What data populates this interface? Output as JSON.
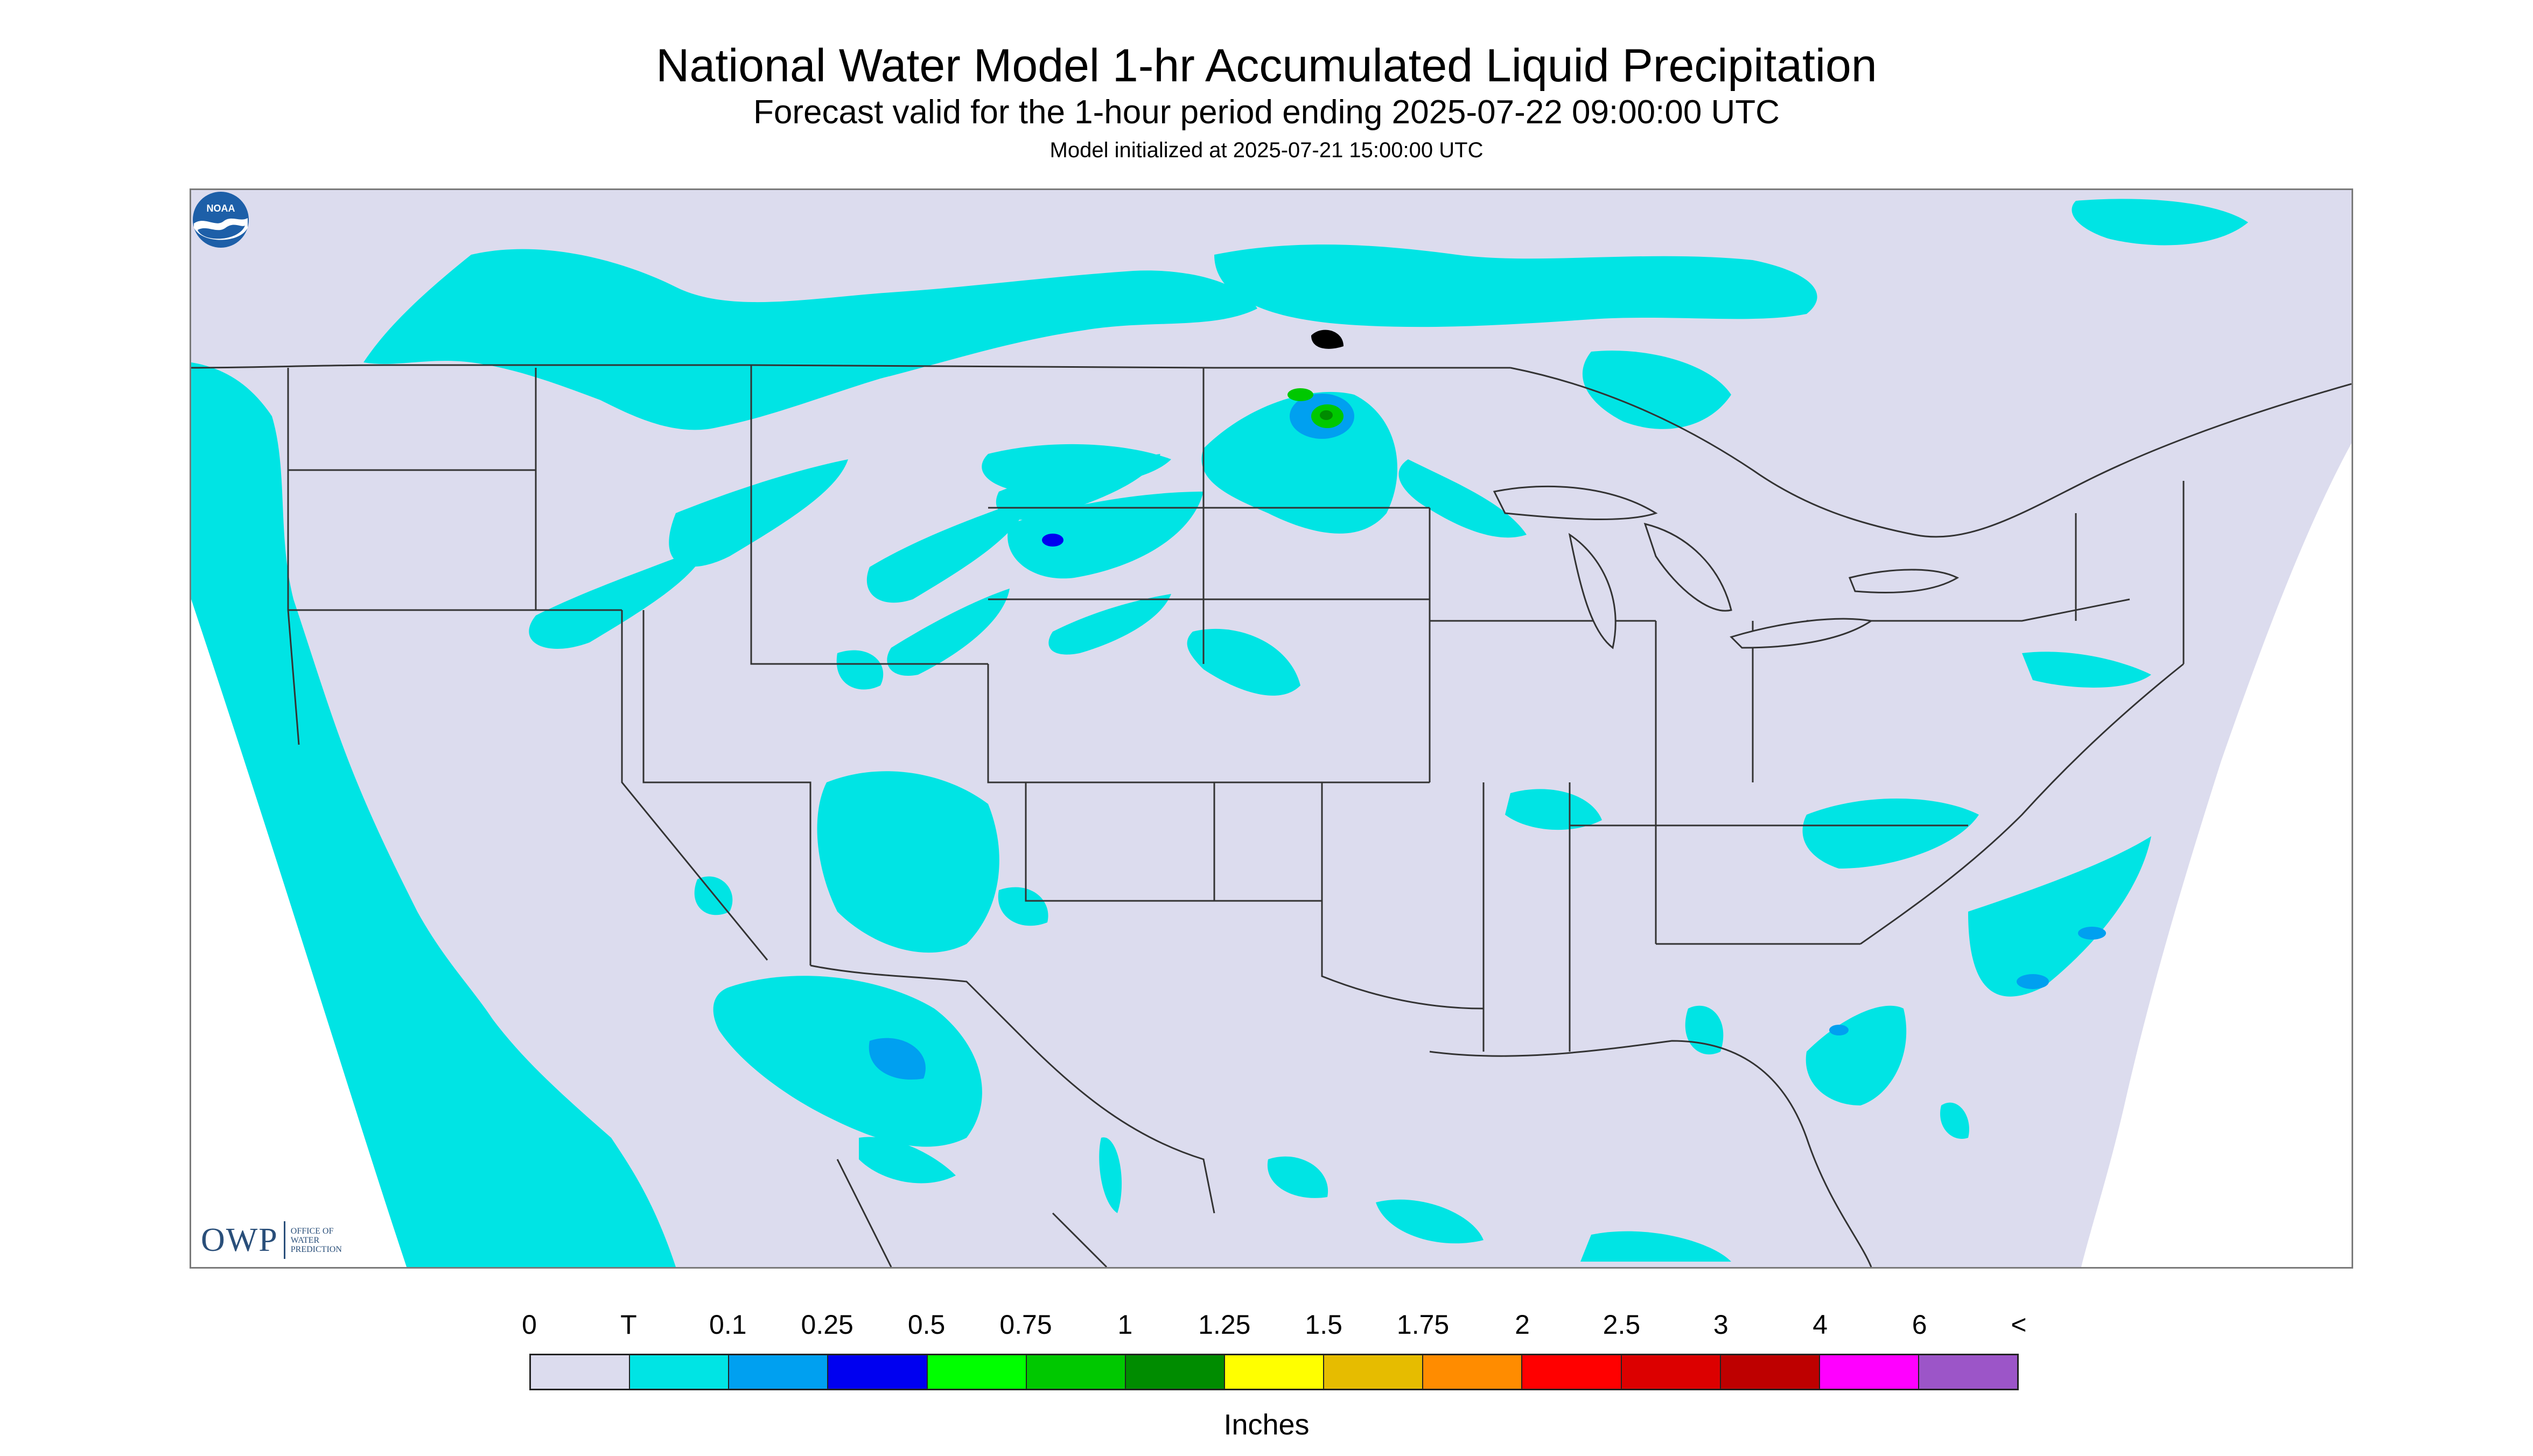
{
  "header": {
    "title": "National Water Model 1-hr Accumulated Liquid Precipitation",
    "subtitle": "Forecast valid for the 1-hour period ending 2025-07-22 09:00:00 UTC",
    "init": "Model initialized at 2025-07-21 15:00:00 UTC"
  },
  "map": {
    "background_color": "#dcdcee",
    "outside_domain_color": "#ffffff",
    "boundary_color": "#333333",
    "owp_logo": {
      "mark": "OWP",
      "text": "OFFICE OF WATER PREDICTION"
    },
    "noaa_logo": {
      "text": "NOAA"
    },
    "precip_cells": [
      {
        "level": "T",
        "region": "pacific-coast-ocean"
      },
      {
        "level": "T",
        "region": "northern-plains-canada-band"
      },
      {
        "level": "0.25",
        "region": "montana-band"
      },
      {
        "level": "0.75",
        "region": "north-dakota-cell"
      },
      {
        "level": "T",
        "region": "southwest-monsoon"
      },
      {
        "level": "T",
        "region": "gulf-coast"
      },
      {
        "level": "0.25",
        "region": "atlantic-offshore"
      }
    ]
  },
  "legend": {
    "labels": [
      "0",
      "T",
      "0.1",
      "0.25",
      "0.5",
      "0.75",
      "1",
      "1.25",
      "1.5",
      "1.75",
      "2",
      "2.5",
      "3",
      "4",
      "6",
      "<"
    ],
    "colors": [
      "#dcdcee",
      "#00e4e4",
      "#00a0f0",
      "#0000f0",
      "#00ff00",
      "#00c800",
      "#008c00",
      "#ffff00",
      "#e6bc00",
      "#ff8c00",
      "#ff0000",
      "#dc0000",
      "#be0000",
      "#ff00ff",
      "#9c55c8"
    ],
    "units": "Inches"
  }
}
